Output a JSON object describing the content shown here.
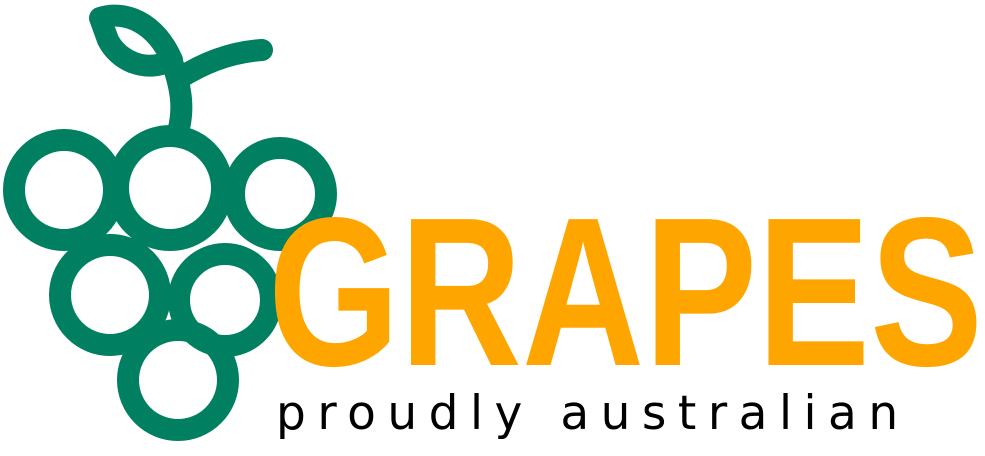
{
  "logo": {
    "wordmark": "GRAPES",
    "tagline": "proudly australian",
    "icon": "grape-bunch-icon",
    "colors": {
      "grape_green": "#008060",
      "wordmark_orange": "#FFA500",
      "tagline_black": "#000000",
      "background": "#FFFFFF"
    }
  }
}
